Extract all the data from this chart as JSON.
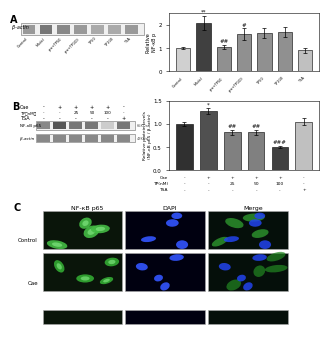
{
  "panel_A_bar": {
    "categories": [
      "Control",
      "Model",
      "pre+TP50",
      "pre+TP100",
      "TP50",
      "TP100",
      "TSA"
    ],
    "values": [
      1.0,
      2.1,
      1.05,
      1.6,
      1.65,
      1.7,
      0.9
    ],
    "errors": [
      0.05,
      0.3,
      0.1,
      0.25,
      0.2,
      0.2,
      0.1
    ],
    "colors": [
      "#d0d0d0",
      "#404040",
      "#909090",
      "#909090",
      "#909090",
      "#909090",
      "#c0c0c0"
    ],
    "ylabel": "Relative \nNF-κB p",
    "ylim": [
      0,
      2.5
    ],
    "yticks": [
      0,
      1,
      2
    ],
    "significance": [
      "",
      "**",
      "##",
      "#",
      "",
      "",
      ""
    ]
  },
  "panel_B_bar": {
    "x_signs": [
      [
        "-",
        "+",
        "+",
        "+",
        "+",
        "-"
      ],
      [
        "-",
        "-",
        "25",
        "50",
        "100",
        "-"
      ],
      [
        "-",
        "-",
        "-",
        "-",
        "-",
        "+"
      ]
    ],
    "values": [
      1.0,
      1.28,
      0.82,
      0.82,
      0.5,
      1.05
    ],
    "errors": [
      0.04,
      0.07,
      0.06,
      0.06,
      0.03,
      0.07
    ],
    "colors": [
      "#303030",
      "#505050",
      "#808080",
      "#808080",
      "#404040",
      "#c0c0c0"
    ],
    "ylabel": "Relative protein levels\n(NF-κB p65 / β-actin)",
    "ylim": [
      0.0,
      1.5
    ],
    "yticks": [
      0.0,
      0.5,
      1.0,
      1.5
    ],
    "significance": [
      "",
      "*",
      "##",
      "##",
      "###",
      ""
    ]
  },
  "background_color": "#ffffff"
}
